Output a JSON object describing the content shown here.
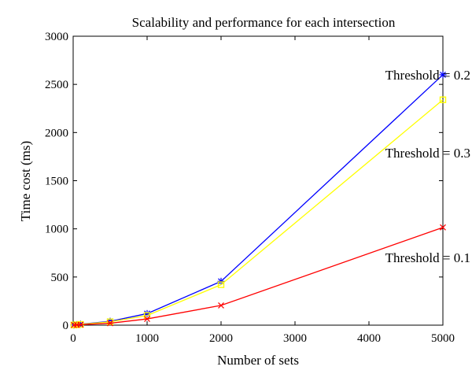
{
  "chart_data": {
    "type": "line",
    "title": "Scalability and performance for each intersection",
    "xlabel": "Number of sets",
    "ylabel": "Time cost (ms)",
    "xlim": [
      0,
      5000
    ],
    "ylim": [
      0,
      3000
    ],
    "x_ticks": [
      0,
      1000,
      2000,
      3000,
      4000,
      5000
    ],
    "y_ticks": [
      0,
      500,
      1000,
      1500,
      2000,
      2500,
      3000
    ],
    "grid": false,
    "legend": "none",
    "x": [
      10,
      50,
      100,
      500,
      1000,
      2000,
      5000
    ],
    "series": [
      {
        "name": "Threshold = 0.2",
        "color": "#0000ff",
        "marker": "star",
        "values": [
          2,
          5,
          10,
          40,
          120,
          455,
          2600
        ]
      },
      {
        "name": "Threshold = 0.3",
        "color": "#ffff00",
        "marker": "square",
        "values": [
          2,
          4,
          8,
          35,
          100,
          420,
          2340
        ]
      },
      {
        "name": "Threshold = 0.1",
        "color": "#ff0000",
        "marker": "x",
        "values": [
          1,
          3,
          5,
          20,
          65,
          205,
          1015
        ]
      }
    ],
    "annotations": [
      {
        "text": "Threshold = 0.2",
        "x": 4220,
        "y": 2600
      },
      {
        "text": "Threshold = 0.3",
        "x": 4220,
        "y": 1790
      },
      {
        "text": "Threshold = 0.1",
        "x": 4220,
        "y": 705
      }
    ]
  }
}
